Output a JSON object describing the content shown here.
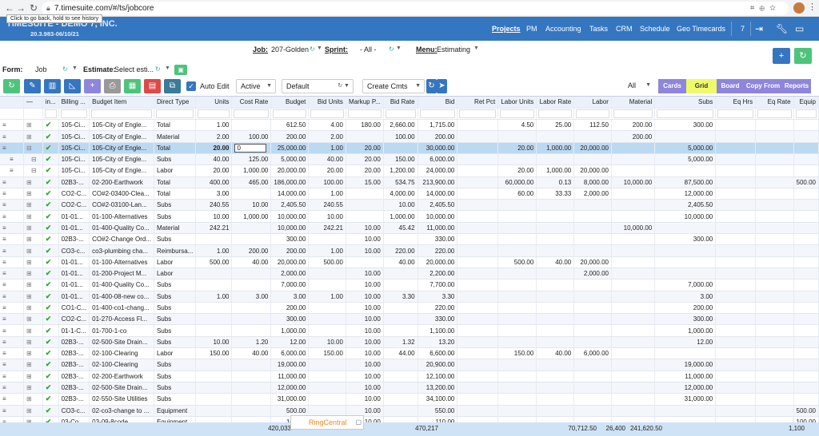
{
  "browser": {
    "url": "7.timesuite.com/#/ts/jobcore",
    "tooltip": "Click to go back, hold to see history"
  },
  "app": {
    "brand": "TIMESUITE - DEMO 7, INC.",
    "version": "20.3.983-06/10/21",
    "nav": [
      "Projects",
      "PM",
      "Accounting",
      "Tasks",
      "CRM",
      "Schedule",
      "Geo Timecards"
    ],
    "active_nav": "Projects",
    "count": "7"
  },
  "job_bar": {
    "job_label": "Job:",
    "job_value": "207-Golden",
    "sprint_label": "Sprint:",
    "sprint_value": "- All -",
    "menu_label": "Menu:",
    "menu_value": "Estimating"
  },
  "form_bar": {
    "form_label": "Form:",
    "form_value": "Job",
    "estimate_label": "Estimate:",
    "estimate_value": "Select esti..."
  },
  "toolbar": {
    "auto_edit": "Auto Edit",
    "status": "Active",
    "layout": "Default",
    "comments": "Create Cmts",
    "filter": "All",
    "views": [
      "Cards",
      "Grid",
      "Board",
      "Copy From",
      "Reports"
    ],
    "active_view": "Grid"
  },
  "columns": [
    "in...",
    "Billing ...",
    "Budget Item",
    "Direct Type",
    "Units",
    "Cost Rate",
    "Budget",
    "Bid Units",
    "Markup P...",
    "Bid Rate",
    "Bid",
    "Ret Pct",
    "Labor Units",
    "Labor Rate",
    "Labor",
    "Material",
    "Subs",
    "Eq Hrs",
    "Eq Rate",
    "Equip"
  ],
  "rows": [
    [
      "105-Ci...",
      "105-City of Engle...",
      "Total",
      "1.00",
      "",
      "612.50",
      "4.00",
      "180.00",
      "2,660.00",
      "1,715.00",
      "",
      "4.50",
      "25.00",
      "112.50",
      "200.00",
      "300.00",
      "",
      "",
      ""
    ],
    [
      "105-Ci...",
      "105-City of Engle...",
      "Material",
      "2.00",
      "100.00",
      "200.00",
      "2.00",
      "",
      "100.00",
      "200.00",
      "",
      "",
      "",
      "",
      "200.00",
      "",
      "",
      "",
      ""
    ],
    [
      "105-Ci...",
      "105-City of Engle...",
      "Total",
      "20.00",
      "0",
      "25,000.00",
      "1.00",
      "20.00",
      "",
      "30,000.00",
      "",
      "20.00",
      "1,000.00",
      "20,000.00",
      "",
      "5,000.00",
      "",
      "",
      ""
    ],
    [
      "105-Ci...",
      "105-City of Engle...",
      "Subs",
      "40.00",
      "125.00",
      "5,000.00",
      "40.00",
      "20.00",
      "150.00",
      "6,000.00",
      "",
      "",
      "",
      "",
      "",
      "5,000.00",
      "",
      "",
      ""
    ],
    [
      "105-Ci...",
      "105-City of Engle...",
      "Labor",
      "20.00",
      "1,000.00",
      "20,000.00",
      "20.00",
      "20.00",
      "1,200.00",
      "24,000.00",
      "",
      "20.00",
      "1,000.00",
      "20,000.00",
      "",
      "",
      "",
      "",
      ""
    ],
    [
      "02B3-...",
      "02-200-Earthwork",
      "Total",
      "400.00",
      "465.00",
      "186,000.00",
      "100.00",
      "15.00",
      "534.75",
      "213,900.00",
      "",
      "60,000.00",
      "0.13",
      "8,000.00",
      "10,000.00",
      "87,500.00",
      "",
      "",
      "500.00"
    ],
    [
      "CO2-C...",
      "CO#2-03400-Clea...",
      "Total",
      "3.00",
      "",
      "14,000.00",
      "1.00",
      "",
      "4,000.00",
      "14,000.00",
      "",
      "60.00",
      "33.33",
      "2,000.00",
      "",
      "12,000.00",
      "",
      "",
      ""
    ],
    [
      "CO2-C...",
      "CO#2-03100-Lan...",
      "Subs",
      "240.55",
      "10.00",
      "2,405.50",
      "240.55",
      "",
      "10.00",
      "2,405.50",
      "",
      "",
      "",
      "",
      "",
      "2,405.50",
      "",
      "",
      ""
    ],
    [
      "01-01...",
      "01-100-Alternatives",
      "Subs",
      "10.00",
      "1,000.00",
      "10,000.00",
      "10.00",
      "",
      "1,000.00",
      "10,000.00",
      "",
      "",
      "",
      "",
      "",
      "10,000.00",
      "",
      "",
      ""
    ],
    [
      "01-01...",
      "01-400-Quality Co...",
      "Material",
      "242.21",
      "",
      "10,000.00",
      "242.21",
      "10.00",
      "45.42",
      "11,000.00",
      "",
      "",
      "",
      "",
      "10,000.00",
      "",
      "",
      "",
      ""
    ],
    [
      "02B3-...",
      "CO#2-Change Ord...",
      "Subs",
      "",
      "",
      "300.00",
      "",
      "10.00",
      "",
      "330.00",
      "",
      "",
      "",
      "",
      "",
      "300.00",
      "",
      "",
      ""
    ],
    [
      "CO3-c...",
      "co3-plumbing cha...",
      "Reimbursa...",
      "1.00",
      "200.00",
      "200.00",
      "1.00",
      "10.00",
      "220.00",
      "220.00",
      "",
      "",
      "",
      "",
      "",
      "",
      "",
      "",
      ""
    ],
    [
      "01-01...",
      "01-100-Alternatives",
      "Labor",
      "500.00",
      "40.00",
      "20,000.00",
      "500.00",
      "",
      "40.00",
      "20,000.00",
      "",
      "500.00",
      "40.00",
      "20,000.00",
      "",
      "",
      "",
      "",
      ""
    ],
    [
      "01-01...",
      "01-200-Project M...",
      "Labor",
      "",
      "",
      "2,000.00",
      "",
      "10.00",
      "",
      "2,200.00",
      "",
      "",
      "",
      "2,000.00",
      "",
      "",
      "",
      "",
      ""
    ],
    [
      "01-01...",
      "01-400-Quality Co...",
      "Subs",
      "",
      "",
      "7,000.00",
      "",
      "10.00",
      "",
      "7,700.00",
      "",
      "",
      "",
      "",
      "",
      "7,000.00",
      "",
      "",
      ""
    ],
    [
      "01-01...",
      "01-400-08-new co...",
      "Subs",
      "1.00",
      "3.00",
      "3.00",
      "1.00",
      "10.00",
      "3.30",
      "3.30",
      "",
      "",
      "",
      "",
      "",
      "3.00",
      "",
      "",
      ""
    ],
    [
      "CO1-C...",
      "01-400-co1-chang...",
      "Subs",
      "",
      "",
      "200.00",
      "",
      "10.00",
      "",
      "220.00",
      "",
      "",
      "",
      "",
      "",
      "200.00",
      "",
      "",
      ""
    ],
    [
      "CO2-C...",
      "01-270-Access Fl...",
      "Subs",
      "",
      "",
      "300.00",
      "",
      "10.00",
      "",
      "330.00",
      "",
      "",
      "",
      "",
      "",
      "300.00",
      "",
      "",
      ""
    ],
    [
      "01-1-C...",
      "01-700-1-co",
      "Subs",
      "",
      "",
      "1,000.00",
      "",
      "10.00",
      "",
      "1,100.00",
      "",
      "",
      "",
      "",
      "",
      "1,000.00",
      "",
      "",
      ""
    ],
    [
      "02B3-...",
      "02-500-Site Drain...",
      "Subs",
      "10.00",
      "1.20",
      "12.00",
      "10.00",
      "10.00",
      "1.32",
      "13.20",
      "",
      "",
      "",
      "",
      "",
      "12.00",
      "",
      "",
      ""
    ],
    [
      "02B3-...",
      "02-100-Clearing",
      "Labor",
      "150.00",
      "40.00",
      "6,000.00",
      "150.00",
      "10.00",
      "44.00",
      "6,600.00",
      "",
      "150.00",
      "40.00",
      "6,000.00",
      "",
      "",
      "",
      "",
      ""
    ],
    [
      "02B3-...",
      "02-100-Clearing",
      "Subs",
      "",
      "",
      "19,000.00",
      "",
      "10.00",
      "",
      "20,900.00",
      "",
      "",
      "",
      "",
      "",
      "19,000.00",
      "",
      "",
      ""
    ],
    [
      "02B3-...",
      "02-200-Earthwork",
      "Subs",
      "",
      "",
      "11,000.00",
      "",
      "10.00",
      "",
      "12,100.00",
      "",
      "",
      "",
      "",
      "",
      "11,000.00",
      "",
      "",
      ""
    ],
    [
      "02B3-...",
      "02-500-Site Drain...",
      "Subs",
      "",
      "",
      "12,000.00",
      "",
      "10.00",
      "",
      "13,200.00",
      "",
      "",
      "",
      "",
      "",
      "12,000.00",
      "",
      "",
      ""
    ],
    [
      "02B3-...",
      "02-550-Site Utilities",
      "Subs",
      "",
      "",
      "31,000.00",
      "",
      "10.00",
      "",
      "34,100.00",
      "",
      "",
      "",
      "",
      "",
      "31,000.00",
      "",
      "",
      ""
    ],
    [
      "CO3-c...",
      "02-co3-change to ...",
      "Equipment",
      "",
      "",
      "500.00",
      "",
      "10.00",
      "",
      "550.00",
      "",
      "",
      "",
      "",
      "",
      "",
      "",
      "",
      "500.00"
    ],
    [
      "03-Co...",
      "03-09-8code",
      "Equipment",
      "",
      "",
      "100.00",
      "",
      "10.00",
      "",
      "110.00",
      "",
      "",
      "",
      "",
      "",
      "",
      "",
      "",
      "100.00"
    ]
  ],
  "totals": {
    "budget": "420,033",
    "bid": "470,217",
    "labor": "70,712.50",
    "material": "26,400",
    "subs": "241,620.50",
    "equip": "1,100"
  },
  "popup": {
    "label": "RingCentral"
  },
  "colors": {
    "header": "#3576c0",
    "accent_green": "#4cc47b",
    "selected_row": "#bcd9f2",
    "view_btn": "#8e86dc",
    "view_active": "#eefa6a"
  }
}
